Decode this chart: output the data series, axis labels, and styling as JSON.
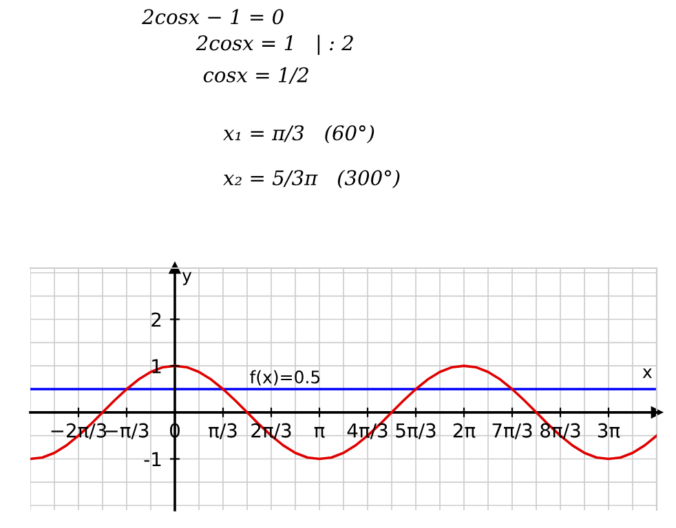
{
  "chart_data": {
    "type": "line",
    "xlabel": "x",
    "ylabel": "y",
    "annotations": [
      "2cosx − 1 = 0",
      "2cosx = 1   | : 2",
      "cosx = 1/2",
      "x₁ = π/3   (60°)",
      "x₂ = 5/3π   (300°)"
    ],
    "x": [
      -3.1416,
      -2.8798,
      -2.618,
      -2.3562,
      -2.0944,
      -1.8326,
      -1.5708,
      -1.309,
      -1.0472,
      -0.7854,
      -0.5236,
      -0.2618,
      0,
      0.2618,
      0.5236,
      0.7854,
      1.0472,
      1.309,
      1.5708,
      1.8326,
      2.0944,
      2.3562,
      2.618,
      2.8798,
      3.1416,
      3.4034,
      3.6652,
      3.927,
      4.1888,
      4.4506,
      4.7124,
      4.9742,
      5.236,
      5.4978,
      5.7596,
      6.0214,
      6.2832,
      6.545,
      6.8068,
      7.0686,
      7.3304,
      7.5922,
      7.854,
      8.1158,
      8.3776,
      8.6394,
      8.9012,
      9.163,
      9.4248,
      9.6866,
      9.9484,
      10.21,
      10.472
    ],
    "series": [
      {
        "color": "#e00000",
        "values": [
          -1,
          -0.97,
          -0.87,
          -0.71,
          -0.5,
          -0.26,
          0,
          0.26,
          0.5,
          0.71,
          0.87,
          0.97,
          1,
          0.97,
          0.87,
          0.71,
          0.5,
          0.26,
          0,
          -0.26,
          -0.5,
          -0.71,
          -0.87,
          -0.97,
          -1,
          -0.97,
          -0.87,
          -0.71,
          -0.5,
          -0.26,
          0,
          0.26,
          0.5,
          0.71,
          0.87,
          0.97,
          1,
          0.97,
          0.87,
          0.71,
          0.5,
          0.26,
          0,
          -0.26,
          -0.5,
          -0.71,
          -0.87,
          -0.97,
          -1,
          -0.97,
          -0.87,
          -0.71,
          -0.5
        ]
      }
    ],
    "ref_lines": [
      {
        "axis": "y",
        "value": 0.5,
        "label": "f(x)=0.5",
        "color": "#0000ff"
      }
    ],
    "xlim": [
      -3.1416,
      10.472
    ],
    "ylim": [
      -2.1,
      3.1
    ],
    "xticks": [
      {
        "value": -2.0944,
        "label": "−2π/3"
      },
      {
        "value": -1.0472,
        "label": "−π/3"
      },
      0,
      {
        "value": 1.0472,
        "label": "π/3"
      },
      {
        "value": 2.0944,
        "label": "2π/3"
      },
      {
        "value": 3.1416,
        "label": "π"
      },
      {
        "value": 4.1888,
        "label": "4π/3"
      },
      {
        "value": 5.236,
        "label": "5π/3"
      },
      {
        "value": 6.2832,
        "label": "2π"
      },
      {
        "value": 7.3304,
        "label": "7π/3"
      },
      {
        "value": 8.3776,
        "label": "8π/3"
      },
      {
        "value": 9.4248,
        "label": "3π"
      }
    ],
    "yticks": [
      -1,
      1,
      2
    ],
    "grid": true,
    "marker": "none",
    "line_style": "solid"
  }
}
